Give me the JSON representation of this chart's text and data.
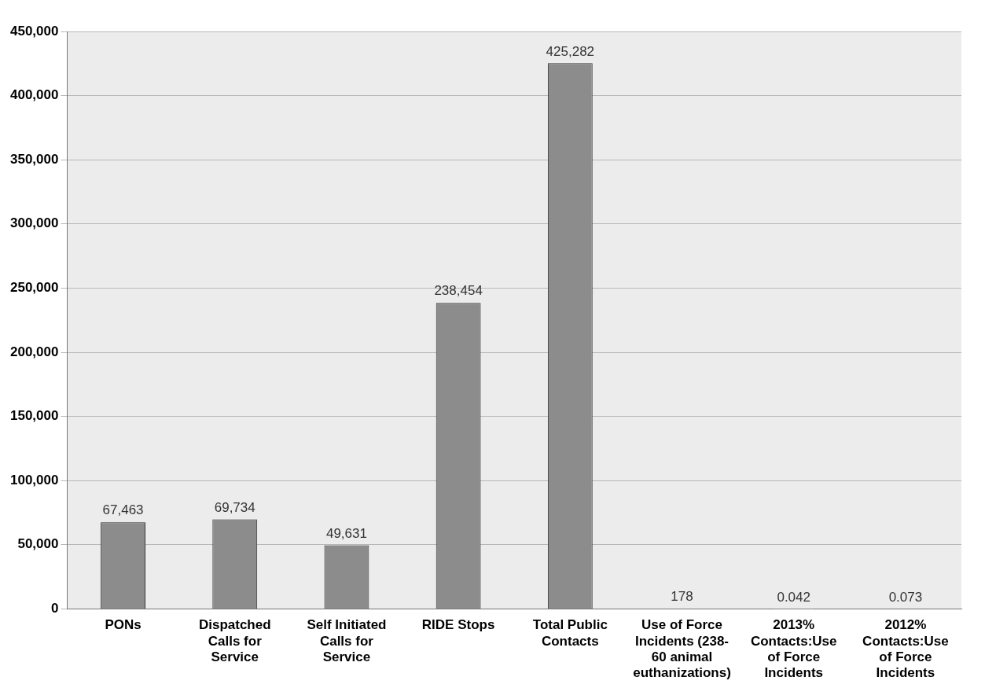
{
  "chart_data": {
    "type": "bar",
    "categories": [
      "PONs",
      "Dispatched Calls for Service",
      "Self Initiated Calls for Service",
      "RIDE Stops",
      "Total Public Contacts",
      "Use of Force Incidents (238-60 animal euthanizations)",
      "2013% Contacts:Use of Force Incidents",
      "2012% Contacts:Use of Force Incidents"
    ],
    "values": [
      67463,
      69734,
      49631,
      238454,
      425282,
      178,
      0.042,
      0.073
    ],
    "colors": [
      "#8c8c8c",
      "#8c8c8c",
      "#8c8c8c",
      "#8c8c8c",
      "#8c8c8c",
      "#8c8c8c",
      "#f2f2f2",
      "#8c8c8c"
    ],
    "value_labels": [
      "67,463",
      "69,734",
      "49,631",
      "238,454",
      "425,282",
      "178",
      "0.042",
      "0.073"
    ],
    "ylim": [
      0,
      450000
    ],
    "yticks": [
      0,
      {
        "value": 50000,
        "label": "50,000"
      },
      {
        "value": 100000,
        "label": "100,000"
      },
      {
        "value": 150000,
        "label": "150,000"
      },
      {
        "value": 200000,
        "label": "200,000"
      },
      {
        "value": 250000,
        "label": "250,000"
      },
      {
        "value": 300000,
        "label": "300,000"
      },
      {
        "value": 350000,
        "label": "350,000"
      },
      {
        "value": 400000,
        "label": "400,000"
      },
      {
        "value": 450000,
        "label": "450,000"
      }
    ],
    "grid": "y",
    "legend": false
  }
}
